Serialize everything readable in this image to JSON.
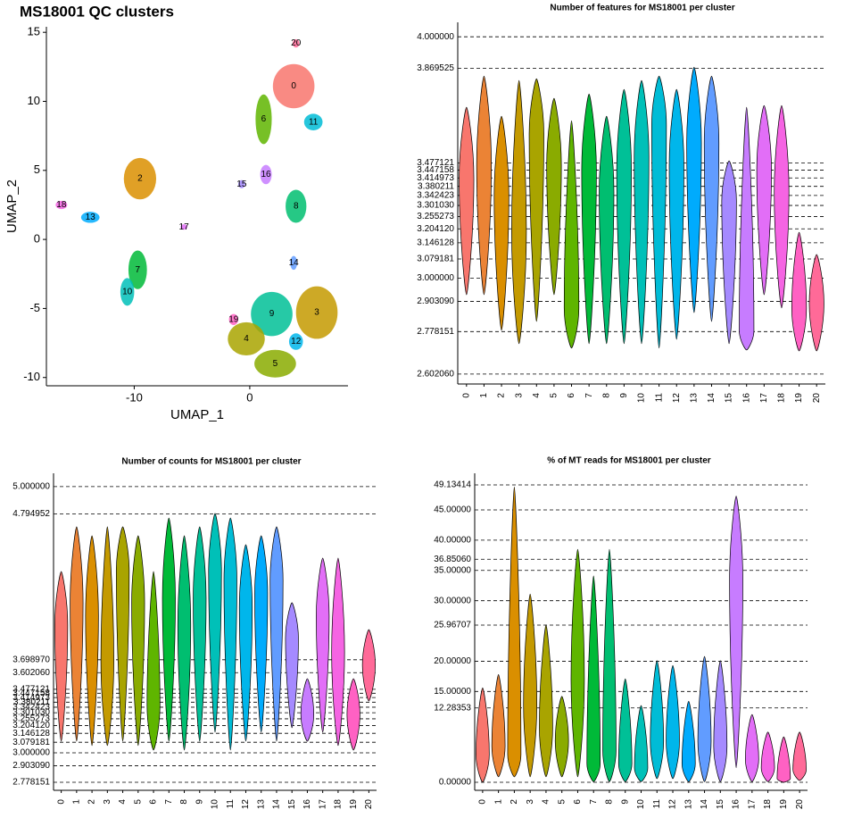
{
  "chart_data": [
    {
      "type": "scatter",
      "title": "MS18001 QC clusters",
      "xlabel": "UMAP_1",
      "ylabel": "UMAP_2",
      "labels": [
        "20",
        "0",
        "6",
        "11",
        "2",
        "15",
        "16",
        "18",
        "13",
        "8",
        "17",
        "14",
        "7",
        "10",
        "19",
        "9",
        "3",
        "4",
        "12",
        "5"
      ],
      "x": [
        4.0,
        3.8,
        1.2,
        5.5,
        -9.5,
        -0.7,
        1.4,
        -16.3,
        -13.8,
        4.0,
        -5.7,
        3.8,
        -9.7,
        -10.6,
        -1.4,
        1.9,
        5.8,
        -0.3,
        4.0,
        2.2
      ],
      "y": [
        14.2,
        11.1,
        8.7,
        8.5,
        4.4,
        4.0,
        4.7,
        2.5,
        1.6,
        2.4,
        0.9,
        -1.7,
        -2.2,
        -3.8,
        -5.8,
        -5.4,
        -5.3,
        -7.2,
        -7.4,
        -9.0
      ],
      "sx": [
        0.3,
        1.8,
        0.7,
        0.8,
        1.4,
        0.3,
        0.5,
        0.5,
        0.8,
        0.9,
        0.3,
        0.3,
        0.8,
        0.6,
        0.4,
        1.8,
        1.8,
        1.6,
        0.6,
        1.8
      ],
      "sy": [
        0.3,
        1.6,
        1.8,
        0.6,
        1.5,
        0.3,
        0.7,
        0.3,
        0.4,
        1.2,
        0.2,
        0.5,
        1.4,
        1.0,
        0.4,
        1.6,
        1.9,
        1.2,
        0.6,
        1.0
      ],
      "colors": [
        "#FF6A98",
        "#F8766D",
        "#5FB500",
        "#00BCD6",
        "#DA8F00",
        "#A58AFF",
        "#C77CFF",
        "#F564E3",
        "#00ABFD",
        "#00BE70",
        "#E26EF7",
        "#619CFF",
        "#00BA38",
        "#00C0B8",
        "#FF61C3",
        "#00C097",
        "#C49A00",
        "#A9A400",
        "#00B6EB",
        "#8AAB00"
      ],
      "xlim": [
        -17.6,
        8.5
      ],
      "ylim": [
        -10.6,
        15.4
      ],
      "xticks": [
        -10,
        0
      ],
      "yticks": [
        -10,
        -5,
        0,
        5,
        10,
        15
      ]
    },
    {
      "type": "violin",
      "title": "Number of features for MS18001 per cluster",
      "categories": [
        "0",
        "1",
        "2",
        "3",
        "4",
        "5",
        "6",
        "7",
        "8",
        "9",
        "10",
        "11",
        "12",
        "13",
        "14",
        "15",
        "16",
        "17",
        "18",
        "19",
        "20"
      ],
      "values": [
        3.412,
        3.467,
        3.338,
        3.19,
        3.597,
        3.467,
        2.876,
        3.449,
        3.357,
        3.449,
        3.504,
        3.634,
        3.467,
        3.56,
        3.56,
        3.32,
        2.783,
        3.449,
        3.357,
        2.876,
        2.894
      ],
      "mins": [
        2.931,
        2.931,
        2.783,
        2.728,
        2.82,
        2.931,
        2.71,
        2.728,
        2.728,
        2.728,
        2.728,
        2.71,
        2.746,
        2.857,
        2.82,
        2.728,
        2.702,
        2.931,
        2.876,
        2.698,
        2.698
      ],
      "maxs": [
        3.708,
        3.837,
        3.671,
        3.819,
        3.826,
        3.745,
        3.652,
        3.763,
        3.671,
        3.782,
        3.819,
        3.837,
        3.782,
        3.874,
        3.837,
        3.486,
        3.708,
        3.715,
        3.715,
        3.19,
        3.098
      ],
      "colors": [
        "#F8766D",
        "#EB8335",
        "#DA8F00",
        "#C49A00",
        "#A9A400",
        "#8AAB00",
        "#5FB500",
        "#00BA38",
        "#00BE70",
        "#00C097",
        "#00C0B8",
        "#00BCD6",
        "#00B6EB",
        "#00ABFD",
        "#619CFF",
        "#A58AFF",
        "#C77CFF",
        "#E26EF7",
        "#F564E3",
        "#FF61C3",
        "#FF6A98"
      ],
      "ylim": [
        2.561,
        4.06
      ],
      "yticks": [
        {
          "value": 4,
          "label": "4.000000"
        },
        {
          "value": 3.869525,
          "label": "3.869525"
        },
        {
          "value": 3.477121,
          "label": "3.477121"
        },
        {
          "value": 3.447158,
          "label": "3.447158"
        },
        {
          "value": 3.414973,
          "label": "3.414973"
        },
        {
          "value": 3.380211,
          "label": "3.380211"
        },
        {
          "value": 3.342423,
          "label": "3.342423"
        },
        {
          "value": 3.30103,
          "label": "3.301030"
        },
        {
          "value": 3.255273,
          "label": "3.255273"
        },
        {
          "value": 3.20412,
          "label": "3.204120"
        },
        {
          "value": 3.146128,
          "label": "3.146128"
        },
        {
          "value": 3.079181,
          "label": "3.079181"
        },
        {
          "value": 3,
          "label": "3.000000"
        },
        {
          "value": 2.90309,
          "label": "2.903090"
        },
        {
          "value": 2.778151,
          "label": "2.778151"
        },
        {
          "value": 2.60206,
          "label": "2.602060"
        }
      ]
    },
    {
      "type": "violin",
      "title": "Number of counts for MS18001 per cluster",
      "categories": [
        "0",
        "1",
        "2",
        "3",
        "4",
        "5",
        "6",
        "7",
        "8",
        "9",
        "10",
        "11",
        "12",
        "13",
        "14",
        "15",
        "16",
        "17",
        "18",
        "19",
        "20"
      ],
      "values": [
        3.96,
        4.128,
        4.027,
        3.691,
        4.362,
        4.128,
        3.356,
        4.161,
        3.96,
        4.161,
        4.362,
        4.295,
        4.094,
        4.195,
        4.295,
        3.859,
        3.289,
        4.027,
        3.758,
        3.289,
        3.658
      ],
      "mins": [
        3.087,
        3.087,
        3.054,
        3.054,
        3.087,
        3.054,
        3.02,
        3.087,
        3.02,
        3.087,
        3.154,
        3.02,
        3.087,
        3.154,
        3.087,
        3.188,
        3.087,
        3.154,
        3.054,
        3.02,
        3.389
      ],
      "maxs": [
        4.362,
        4.698,
        4.631,
        4.698,
        4.698,
        4.631,
        4.362,
        4.765,
        4.631,
        4.698,
        4.799,
        4.765,
        4.564,
        4.631,
        4.698,
        4.128,
        3.557,
        4.463,
        4.463,
        3.557,
        3.926
      ],
      "colors": [
        "#F8766D",
        "#EB8335",
        "#DA8F00",
        "#C49A00",
        "#A9A400",
        "#8AAB00",
        "#5FB500",
        "#00BA38",
        "#00BE70",
        "#00C097",
        "#00C0B8",
        "#00BCD6",
        "#00B6EB",
        "#00ABFD",
        "#619CFF",
        "#A58AFF",
        "#C77CFF",
        "#E26EF7",
        "#F564E3",
        "#FF61C3",
        "#FF6A98"
      ],
      "ylim": [
        2.718,
        5.1
      ],
      "yticks": [
        {
          "value": 5,
          "label": "5.000000"
        },
        {
          "value": 4.794952,
          "label": "4.794952"
        },
        {
          "value": 3.69897,
          "label": "3.698970"
        },
        {
          "value": 3.60206,
          "label": "3.602060"
        },
        {
          "value": 3.477121,
          "label": "3.477121"
        },
        {
          "value": 3.447158,
          "label": "3.447158"
        },
        {
          "value": 3.414973,
          "label": "3.414973"
        },
        {
          "value": 3.380211,
          "label": "3.380211"
        },
        {
          "value": 3.342423,
          "label": "3.342423"
        },
        {
          "value": 3.30103,
          "label": "3.301030"
        },
        {
          "value": 3.255273,
          "label": "3.255273"
        },
        {
          "value": 3.20412,
          "label": "3.204120"
        },
        {
          "value": 3.146128,
          "label": "3.146128"
        },
        {
          "value": 3.079181,
          "label": "3.079181"
        },
        {
          "value": 3,
          "label": "3.000000"
        },
        {
          "value": 2.90309,
          "label": "2.903090"
        },
        {
          "value": 2.778151,
          "label": "2.778151"
        }
      ]
    },
    {
      "type": "violin",
      "title": "% of MT reads for MS18001 per cluster",
      "categories": [
        "0",
        "1",
        "2",
        "3",
        "4",
        "5",
        "6",
        "7",
        "8",
        "9",
        "10",
        "11",
        "12",
        "13",
        "14",
        "15",
        "16",
        "17",
        "18",
        "19",
        "20"
      ],
      "values": [
        4.6,
        6.0,
        4.6,
        12.7,
        9.0,
        6.8,
        17.1,
        3.1,
        5.3,
        3.1,
        2.4,
        6.8,
        6.8,
        3.1,
        6.8,
        6.0,
        33.3,
        3.8,
        2.4,
        0.6,
        2.1
      ],
      "mins": [
        0,
        0.9,
        0.9,
        0.9,
        0.9,
        0.9,
        0.9,
        0.1,
        0.1,
        0.1,
        0.1,
        0.6,
        0.6,
        0.1,
        0.1,
        0.1,
        2.4,
        0.1,
        0.1,
        0,
        0.3
      ],
      "maxs": [
        15.6,
        17.8,
        48.8,
        31.1,
        26.0,
        14.2,
        38.5,
        34.1,
        38.5,
        17.1,
        12.7,
        20.1,
        19.3,
        13.4,
        20.8,
        20.1,
        47.3,
        11.2,
        8.3,
        7.5,
        8.3
      ],
      "colors": [
        "#F8766D",
        "#EB8335",
        "#DA8F00",
        "#C49A00",
        "#A9A400",
        "#8AAB00",
        "#5FB500",
        "#00BA38",
        "#00BE70",
        "#00C097",
        "#00C0B8",
        "#00BCD6",
        "#00B6EB",
        "#00ABFD",
        "#619CFF",
        "#A58AFF",
        "#C77CFF",
        "#E26EF7",
        "#F564E3",
        "#FF61C3",
        "#FF6A98"
      ],
      "ylim": [
        -1.33,
        51.05
      ],
      "yticks": [
        {
          "value": 49.13414,
          "label": "49.13414"
        },
        {
          "value": 45,
          "label": "45.00000"
        },
        {
          "value": 40,
          "label": "40.00000"
        },
        {
          "value": 36.8506,
          "label": "36.85060"
        },
        {
          "value": 35,
          "label": "35.00000"
        },
        {
          "value": 30,
          "label": "30.00000"
        },
        {
          "value": 25.96707,
          "label": "25.96707"
        },
        {
          "value": 20,
          "label": "20.00000"
        },
        {
          "value": 15,
          "label": "15.00000"
        },
        {
          "value": 12.28353,
          "label": "12.28353"
        },
        {
          "value": 0,
          "label": "0.00000"
        }
      ]
    }
  ]
}
